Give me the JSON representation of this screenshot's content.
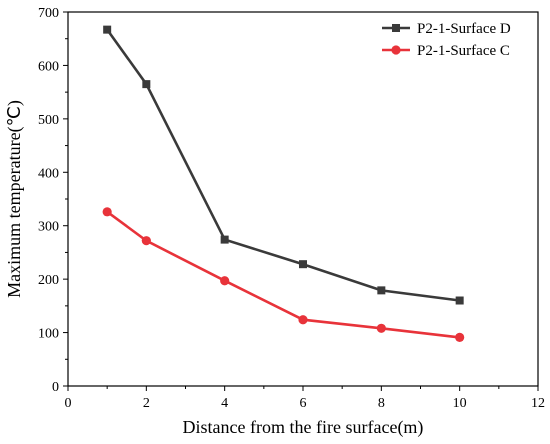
{
  "chart_data": {
    "type": "line",
    "xlabel": "Distance from the fire surface(m)",
    "ylabel": "Maximum temperature(℃)",
    "xlim": [
      0,
      12
    ],
    "ylim": [
      0,
      700
    ],
    "xticks": [
      0,
      2,
      4,
      6,
      8,
      10,
      12
    ],
    "yticks": [
      0,
      100,
      200,
      300,
      400,
      500,
      600,
      700
    ],
    "x": [
      1,
      2,
      4,
      6,
      8,
      10
    ],
    "legend_position": "top-right",
    "grid": false,
    "series": [
      {
        "name": "P2-1-Surface D",
        "values": [
          667,
          565,
          274,
          228,
          179,
          160
        ],
        "color": "#3a3a3a",
        "marker": "square"
      },
      {
        "name": "P2-1-Surface C",
        "values": [
          326,
          272,
          197,
          124,
          108,
          91
        ],
        "color": "#e8333a",
        "marker": "circle"
      }
    ]
  }
}
